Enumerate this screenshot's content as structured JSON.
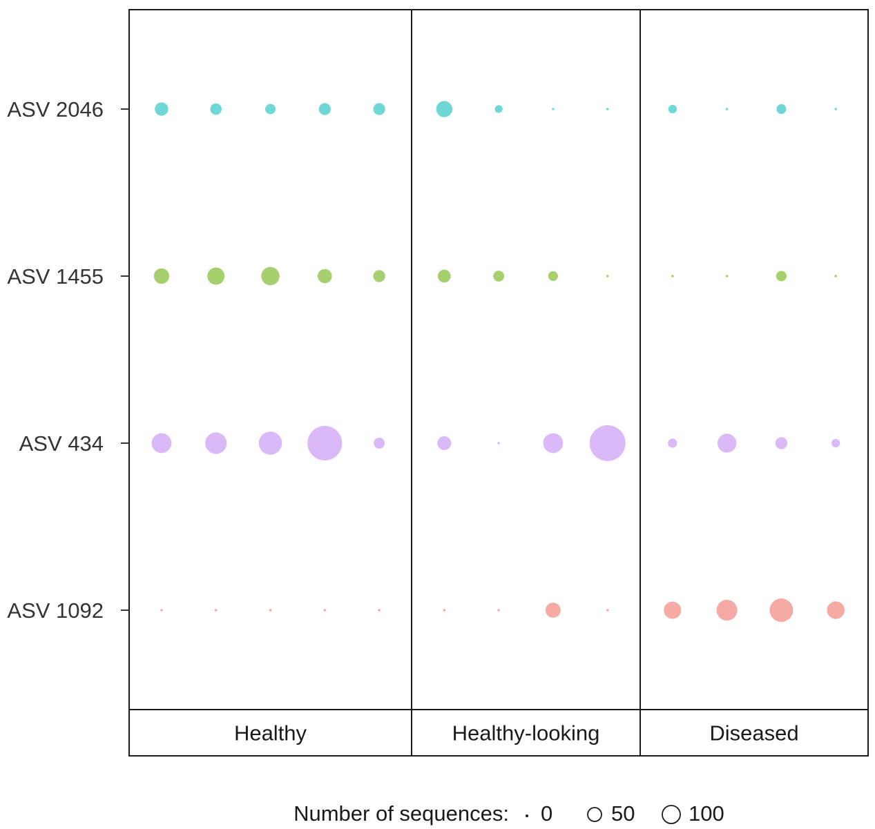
{
  "chart_data": {
    "type": "scatter",
    "title": "",
    "xlabel": "",
    "ylabel": "",
    "grid": false,
    "rows": [
      "ASV 2046",
      "ASV 1455",
      "ASV 434",
      "ASV 1092"
    ],
    "row_colors": {
      "ASV 2046": "#6fd8d6",
      "ASV 1455": "#a6cf6d",
      "ASV 434": "#dbb8f8",
      "ASV 1092": "#f6aaa4"
    },
    "facets": [
      {
        "label": "Healthy",
        "samples": 5,
        "values": {
          "ASV 2046": [
            15,
            11,
            9,
            12,
            12
          ],
          "ASV 1455": [
            20,
            25,
            28,
            17,
            12
          ],
          "ASV 434": [
            33,
            39,
            45,
            100,
            10
          ],
          "ASV 1092": [
            0,
            0,
            0,
            0,
            0
          ]
        }
      },
      {
        "label": "Healthy-looking",
        "samples": 4,
        "values": {
          "ASV 2046": [
            22,
            5,
            0,
            0
          ],
          "ASV 1455": [
            14,
            10,
            8,
            0
          ],
          "ASV 434": [
            16,
            0,
            33,
            108
          ],
          "ASV 1092": [
            0,
            0,
            19,
            0
          ]
        }
      },
      {
        "label": "Diseased",
        "samples": 4,
        "values": {
          "ASV 2046": [
            6,
            0,
            8,
            0
          ],
          "ASV 1455": [
            0,
            0,
            9,
            0
          ],
          "ASV 434": [
            7,
            30,
            12,
            6
          ],
          "ASV 1092": [
            25,
            36,
            46,
            26
          ]
        }
      }
    ],
    "legend": {
      "title": "Number of sequences:",
      "position": "bottom",
      "entries": [
        {
          "label": "0",
          "value": 0
        },
        {
          "label": "50",
          "value": 50
        },
        {
          "label": "100",
          "value": 100
        }
      ]
    }
  }
}
